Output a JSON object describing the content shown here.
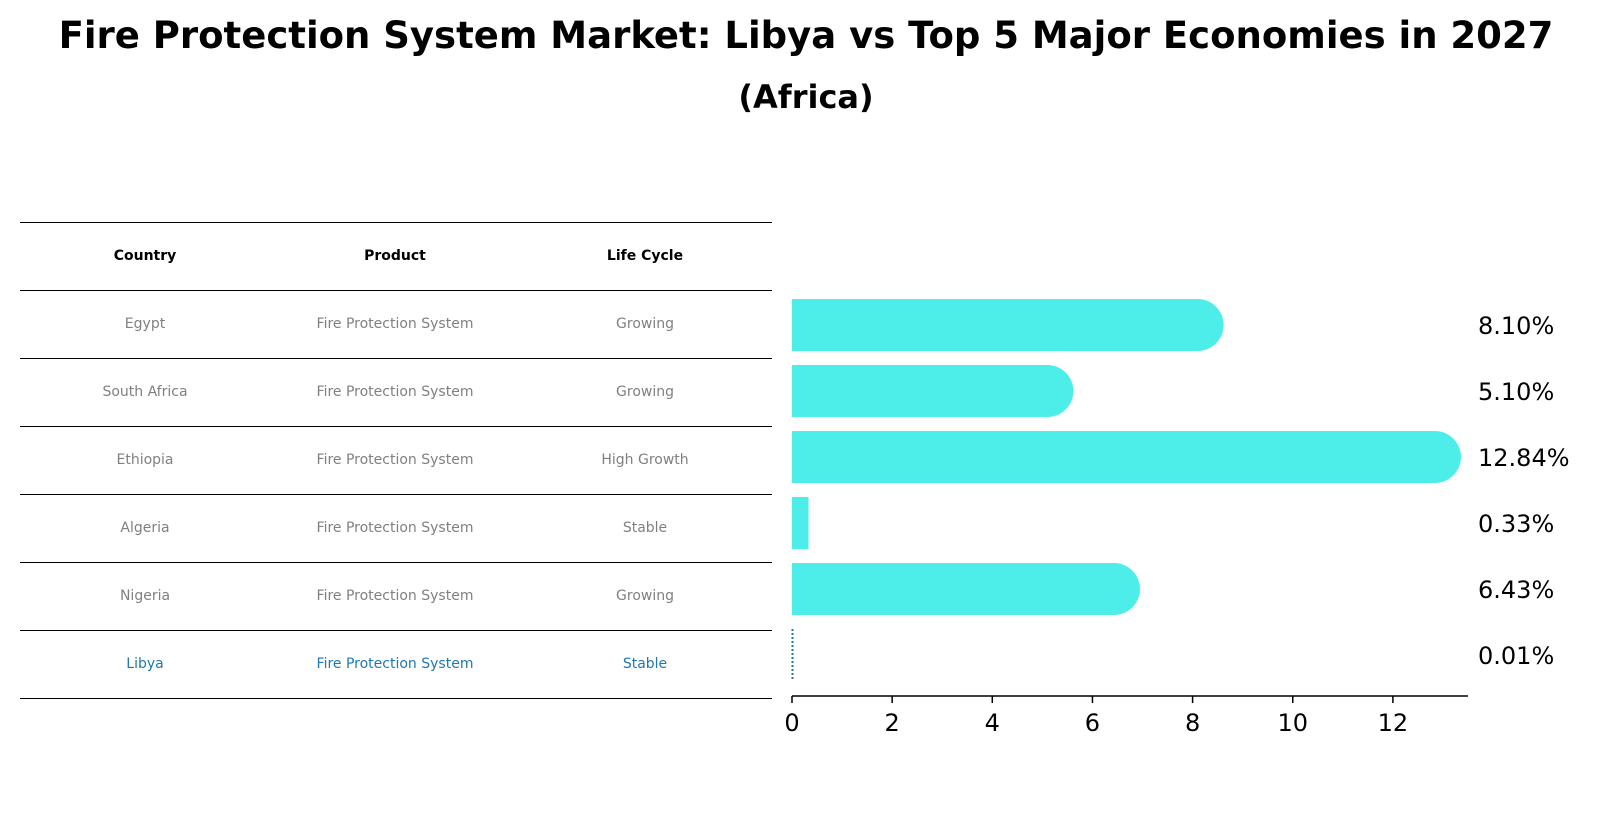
{
  "title": "Fire Protection System Market: Libya vs Top 5 Major Economies in 2027",
  "subtitle": "(Africa)",
  "table": {
    "headers": [
      "Country",
      "Product",
      "Life Cycle"
    ],
    "rows": [
      [
        "Egypt",
        "Fire Protection System",
        "Growing"
      ],
      [
        "South Africa",
        "Fire Protection System",
        "Growing"
      ],
      [
        "Ethiopia",
        "Fire Protection System",
        "High Growth"
      ],
      [
        "Algeria",
        "Fire Protection System",
        "Stable"
      ],
      [
        "Nigeria",
        "Fire Protection System",
        "Growing"
      ],
      [
        "Libya",
        "Fire Protection System",
        "Stable"
      ]
    ]
  },
  "chart_data": {
    "type": "bar",
    "orientation": "horizontal",
    "categories": [
      "Egypt",
      "South Africa",
      "Ethiopia",
      "Algeria",
      "Nigeria",
      "Libya"
    ],
    "values": [
      8.1,
      5.1,
      12.84,
      0.33,
      6.43,
      0.01
    ],
    "value_labels": [
      "8.10%",
      "5.10%",
      "12.84%",
      "0.33%",
      "6.43%",
      "0.01%"
    ],
    "xlim": [
      0,
      13.5
    ],
    "xticks": [
      0,
      2,
      4,
      6,
      8,
      10,
      12
    ],
    "grid": false,
    "highlight": "Libya",
    "colors": {
      "bar": "#4deeea",
      "highlight": "#1f77b4",
      "text": "#808080"
    }
  }
}
